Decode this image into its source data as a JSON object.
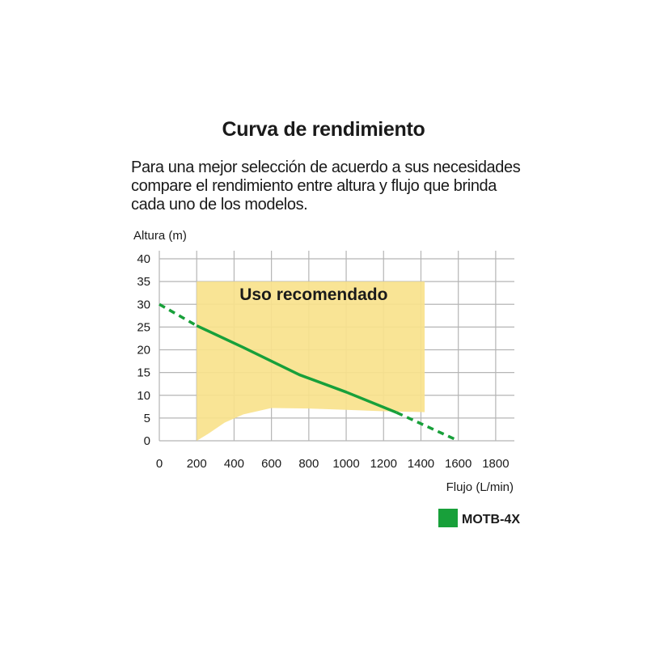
{
  "header": {
    "title": "Curva de rendimiento",
    "subtitle_lines": [
      "Para una mejor selección de acuerdo a sus necesidades",
      "compare el rendimiento entre altura y flujo que brinda",
      "cada uno de los modelos."
    ]
  },
  "chart_data": {
    "type": "line",
    "xlabel": "Flujo (L/min)",
    "ylabel": "Altura (m)",
    "xlim": [
      0,
      1900
    ],
    "ylim": [
      0,
      40
    ],
    "x_ticks": [
      0,
      200,
      400,
      600,
      800,
      1000,
      1200,
      1400,
      1600,
      1800
    ],
    "y_ticks": [
      0,
      5,
      10,
      15,
      20,
      25,
      30,
      35,
      40
    ],
    "grid": true,
    "legend_position": "bottom-right",
    "colors": {
      "series": "#18a03a",
      "region_fill": "#f8e28c",
      "grid": "#b5b5b5"
    },
    "series": [
      {
        "name": "MOTB-4X",
        "solid": [
          {
            "x": 200,
            "y": 25.3
          },
          {
            "x": 450,
            "y": 20.5
          },
          {
            "x": 750,
            "y": 14.5
          },
          {
            "x": 1000,
            "y": 10.7
          },
          {
            "x": 1270,
            "y": 6.2
          }
        ],
        "dashed_extensions": [
          [
            {
              "x": 0,
              "y": 30
            },
            {
              "x": 200,
              "y": 25.3
            }
          ],
          [
            {
              "x": 1270,
              "y": 6.2
            },
            {
              "x": 1600,
              "y": 0
            }
          ]
        ]
      }
    ],
    "recommended_region": {
      "label": "Uso recomendado",
      "x_range": [
        200,
        1420
      ],
      "top": 35,
      "bottom_boundary": [
        {
          "x": 200,
          "y": 0
        },
        {
          "x": 260,
          "y": 1.5
        },
        {
          "x": 350,
          "y": 4.0
        },
        {
          "x": 450,
          "y": 5.8
        },
        {
          "x": 600,
          "y": 7.2
        },
        {
          "x": 800,
          "y": 7.1
        },
        {
          "x": 1000,
          "y": 6.8
        },
        {
          "x": 1200,
          "y": 6.5
        },
        {
          "x": 1420,
          "y": 6.3
        }
      ]
    }
  }
}
